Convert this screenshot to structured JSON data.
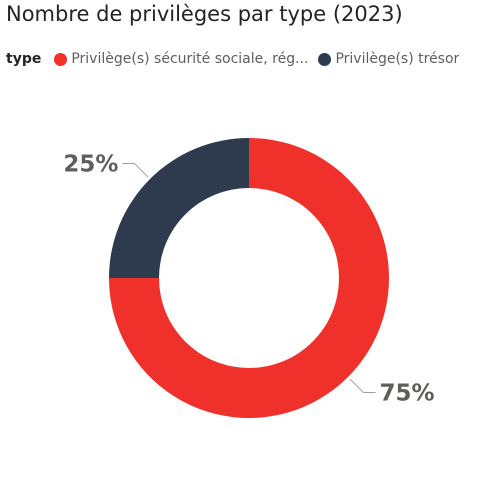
{
  "header": {
    "title": "Nombre de privilèges par type (2023)"
  },
  "legend": {
    "title": "type",
    "items": [
      {
        "label": "Privilège(s) sécurité sociale, rég...",
        "color": "#f0302a"
      },
      {
        "label": "Privilège(s) trésor",
        "color": "#2e3b4e"
      }
    ]
  },
  "chart_data": {
    "type": "pie",
    "donut": true,
    "title": "Nombre de privilèges par type (2023)",
    "legend_title": "type",
    "legend_position": "top-left",
    "categories": [
      "Privilège(s) sécurité sociale, rég...",
      "Privilège(s) trésor"
    ],
    "values": [
      75,
      25
    ],
    "data_labels": [
      "75%",
      "25%"
    ],
    "colors": [
      "#f0302a",
      "#2e3b4e"
    ]
  }
}
